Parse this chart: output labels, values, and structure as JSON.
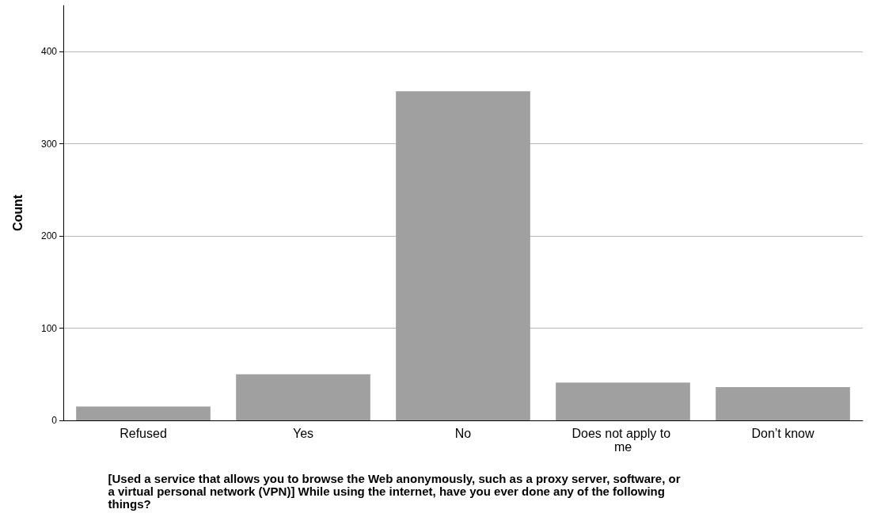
{
  "chart_data": {
    "type": "bar",
    "categories": [
      "Refused",
      "Yes",
      "No",
      "Does not apply to me",
      "Don’t know"
    ],
    "values": [
      15,
      50,
      357,
      41,
      36
    ],
    "color": "#a0a0a0",
    "ylabel": "Count",
    "xlabel": "[Used a service that allows you to browse the Web anonymously, such as a proxy server, software, or a virtual personal network (VPN)] While using the internet, have you ever done any of the following things?",
    "ylim": [
      0,
      450
    ],
    "yticks": [
      0,
      100,
      200,
      300,
      400
    ],
    "grid": "y"
  }
}
